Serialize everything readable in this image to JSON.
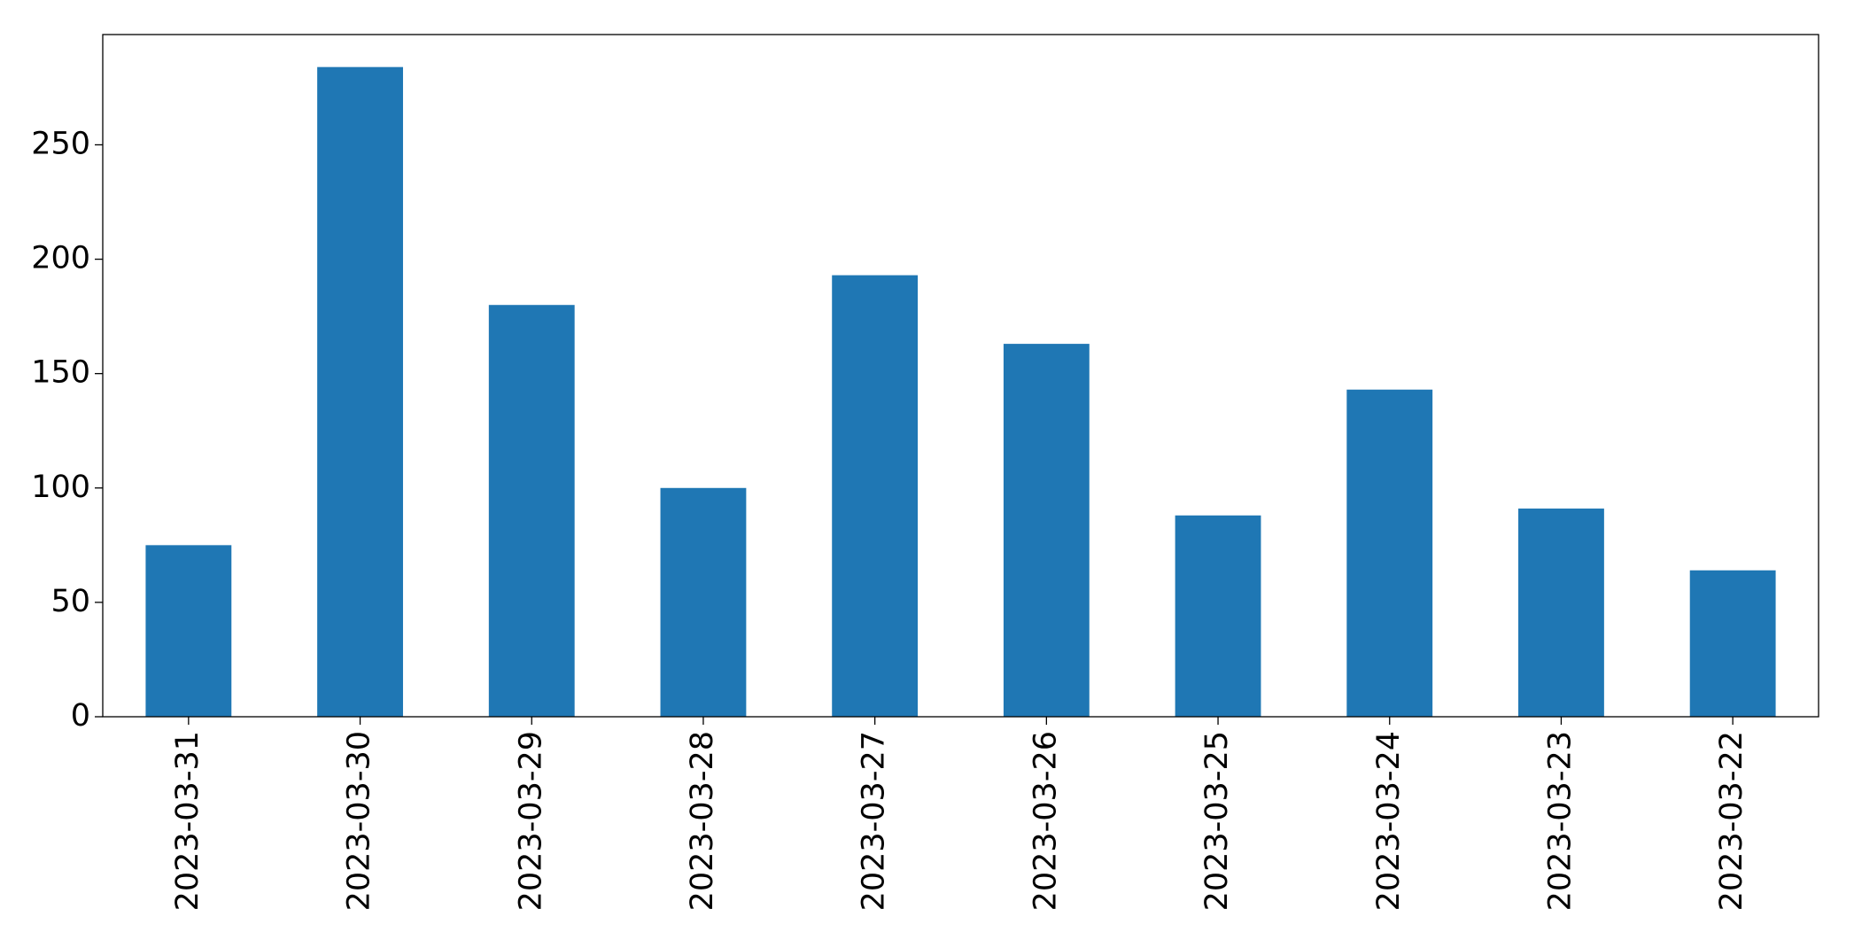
{
  "chart_data": {
    "type": "bar",
    "categories": [
      "2023-03-31",
      "2023-03-30",
      "2023-03-29",
      "2023-03-28",
      "2023-03-27",
      "2023-03-26",
      "2023-03-25",
      "2023-03-24",
      "2023-03-23",
      "2023-03-22"
    ],
    "values": [
      75,
      284,
      180,
      100,
      193,
      163,
      88,
      143,
      91,
      64
    ],
    "color": "#1f77b4",
    "ylim": [
      0,
      298.2
    ],
    "yticks": [
      0,
      50,
      100,
      150,
      200,
      250
    ],
    "grid": false
  }
}
